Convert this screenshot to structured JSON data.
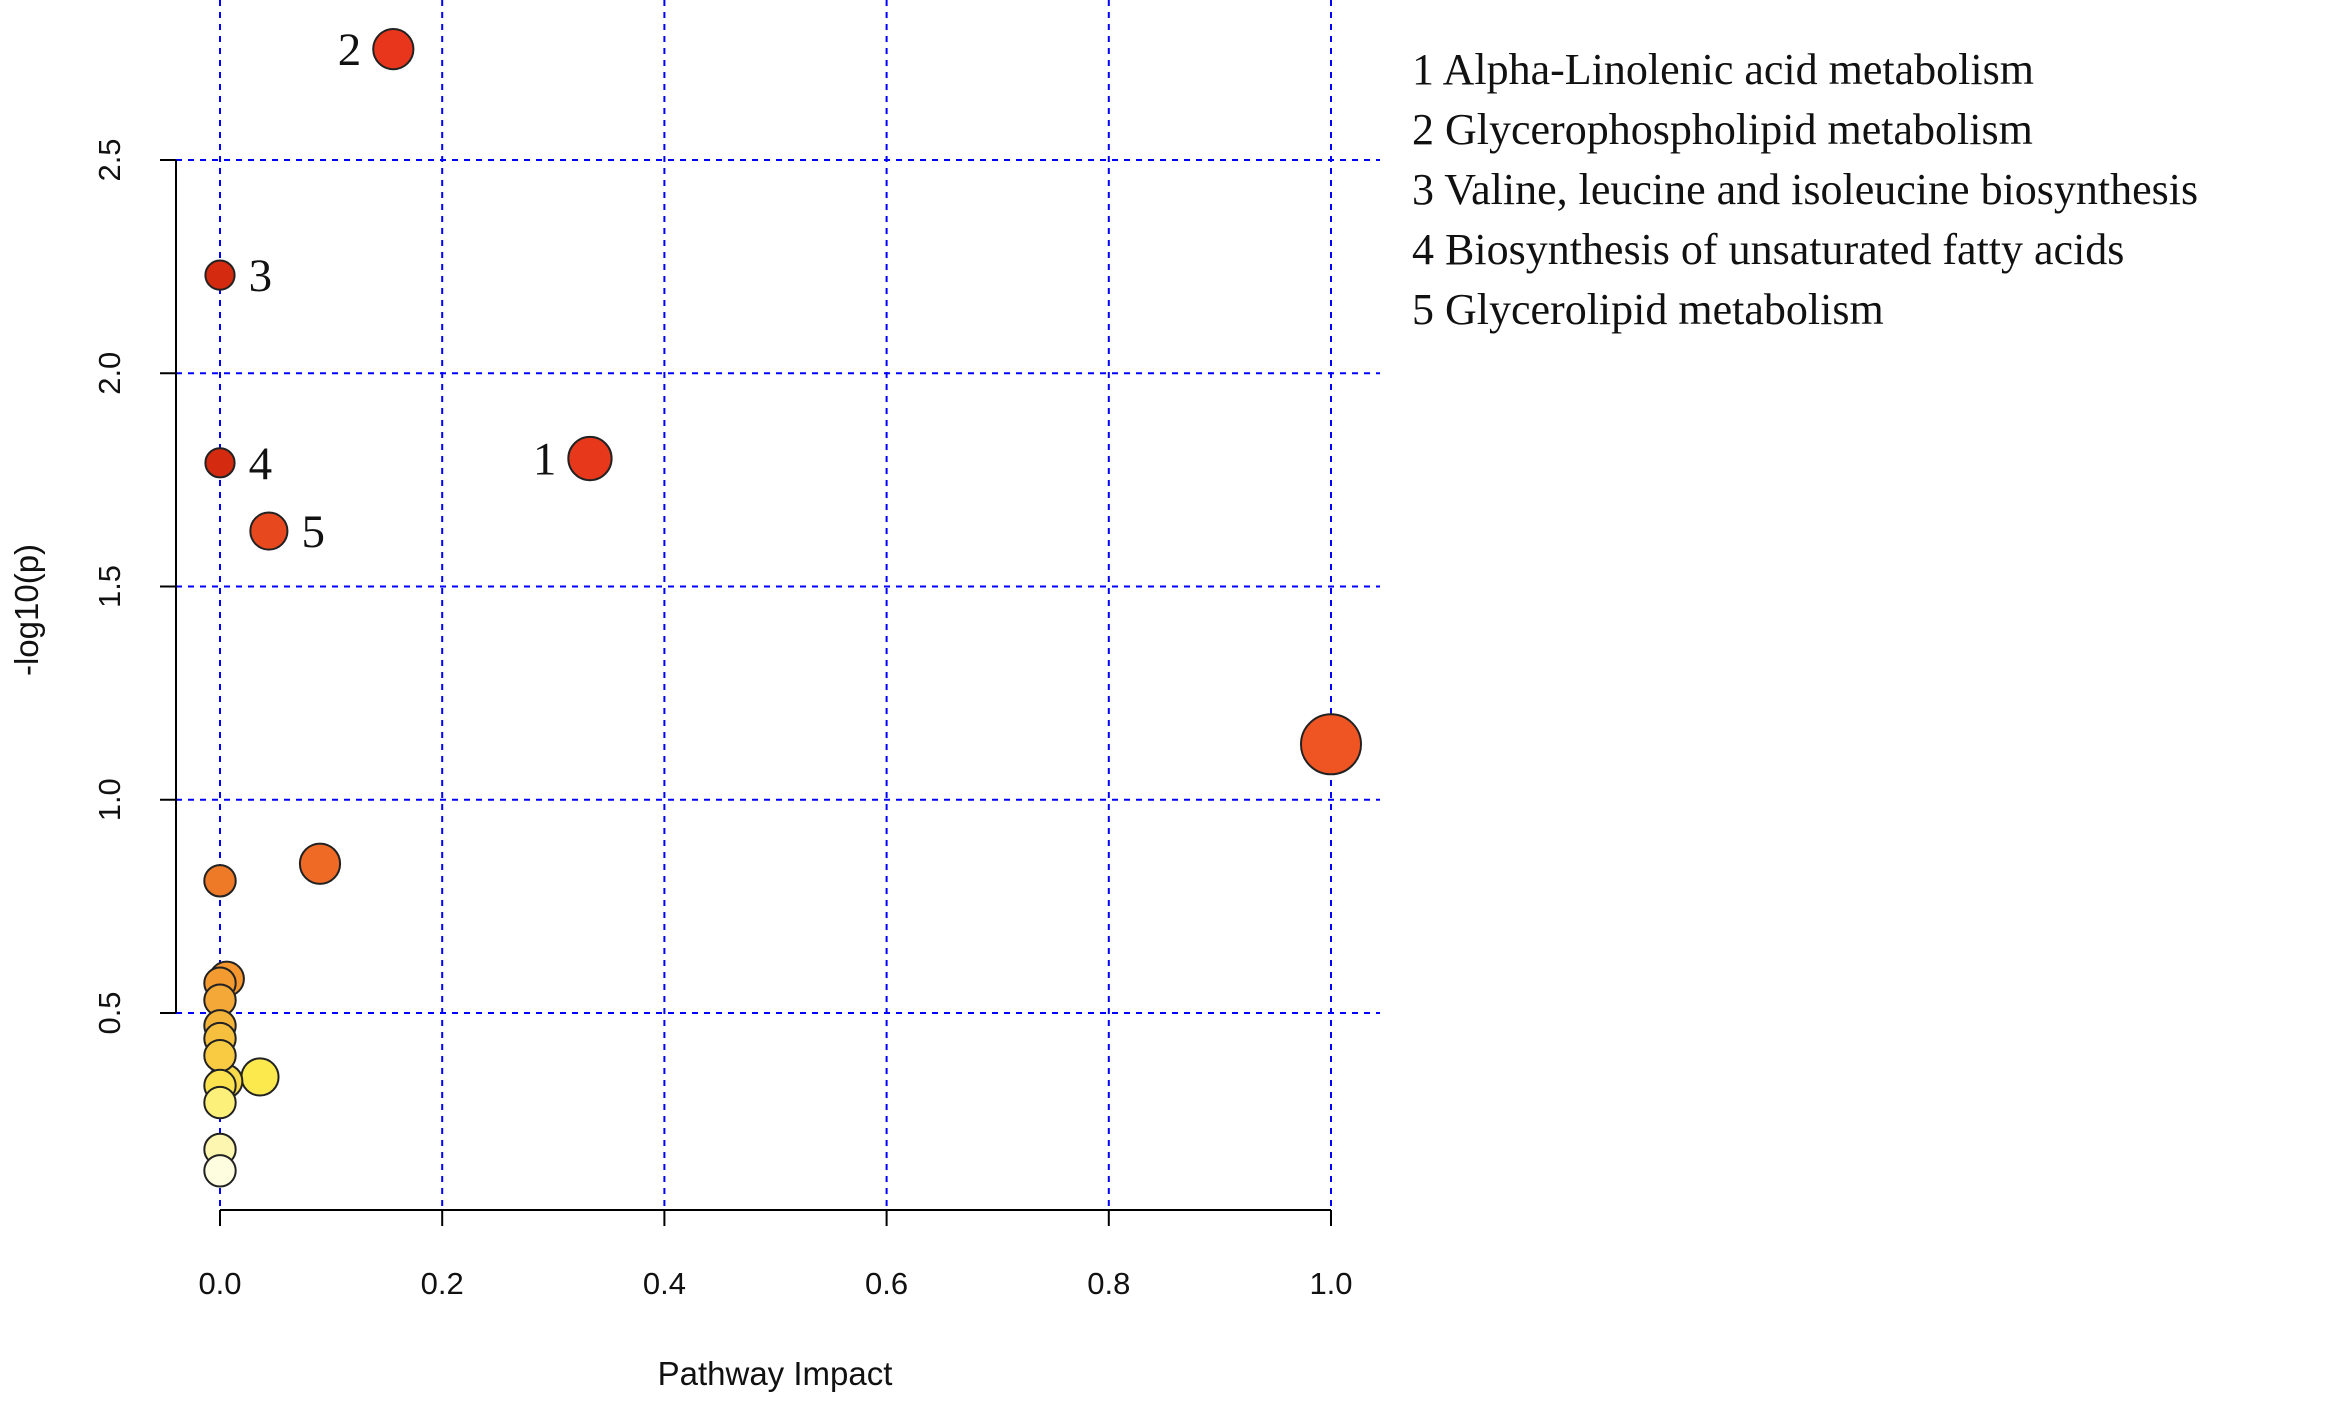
{
  "chart_data": {
    "type": "scatter",
    "title": "",
    "xlabel": "Pathway Impact",
    "ylabel": "-log10(p)",
    "xlim": [
      -0.03,
      1.03
    ],
    "ylim": [
      0.0,
      2.85
    ],
    "x_ticks": [
      "0.0",
      "0.2",
      "0.4",
      "0.6",
      "0.8",
      "1.0"
    ],
    "y_ticks": [
      "0.5",
      "1.0",
      "1.5",
      "2.0",
      "2.5"
    ],
    "grid": true,
    "grid_color": "#0000ff",
    "legend_position": "top-right",
    "points": [
      {
        "label": "2",
        "x": 0.156,
        "y": 2.76,
        "size": 0.55,
        "color": "#e8361c"
      },
      {
        "label": "3",
        "x": 0.0,
        "y": 2.23,
        "size": 0.3,
        "color": "#d42a10"
      },
      {
        "label": "1",
        "x": 0.333,
        "y": 1.8,
        "size": 0.62,
        "color": "#e8381c"
      },
      {
        "label": "4",
        "x": 0.0,
        "y": 1.79,
        "size": 0.3,
        "color": "#d42a10"
      },
      {
        "label": "5",
        "x": 0.044,
        "y": 1.63,
        "size": 0.48,
        "color": "#e8481e"
      },
      {
        "label": "",
        "x": 1.0,
        "y": 1.13,
        "size": 1.0,
        "color": "#ef5522"
      },
      {
        "label": "",
        "x": 0.09,
        "y": 0.85,
        "size": 0.55,
        "color": "#ef6b25"
      },
      {
        "label": "",
        "x": 0.0,
        "y": 0.81,
        "size": 0.35,
        "color": "#ee7a28"
      },
      {
        "label": "",
        "x": 0.006,
        "y": 0.58,
        "size": 0.42,
        "color": "#f5962e"
      },
      {
        "label": "",
        "x": 0.0,
        "y": 0.57,
        "size": 0.35,
        "color": "#f39a30"
      },
      {
        "label": "",
        "x": 0.0,
        "y": 0.53,
        "size": 0.35,
        "color": "#f4a838"
      },
      {
        "label": "",
        "x": 0.0,
        "y": 0.47,
        "size": 0.35,
        "color": "#f4b43a"
      },
      {
        "label": "",
        "x": 0.0,
        "y": 0.44,
        "size": 0.35,
        "color": "#f6bf3e"
      },
      {
        "label": "",
        "x": 0.0,
        "y": 0.4,
        "size": 0.35,
        "color": "#f8cb42"
      },
      {
        "label": "",
        "x": 0.036,
        "y": 0.35,
        "size": 0.48,
        "color": "#fbe94d"
      },
      {
        "label": "",
        "x": 0.005,
        "y": 0.34,
        "size": 0.4,
        "color": "#f8d94a"
      },
      {
        "label": "",
        "x": 0.0,
        "y": 0.33,
        "size": 0.35,
        "color": "#fbe24e"
      },
      {
        "label": "",
        "x": 0.0,
        "y": 0.29,
        "size": 0.35,
        "color": "#fdf07a"
      },
      {
        "label": "",
        "x": 0.0,
        "y": 0.18,
        "size": 0.35,
        "color": "#fdf6b0"
      },
      {
        "label": "",
        "x": 0.0,
        "y": 0.13,
        "size": 0.35,
        "color": "#fffde0"
      }
    ],
    "legend": [
      "1 Alpha-Linolenic acid metabolism",
      "2 Glycerophospholipid metabolism",
      "3 Valine, leucine and isoleucine biosynthesis",
      "4 Biosynthesis of unsaturated fatty acids",
      "5 Glycerolipid metabolism"
    ]
  }
}
